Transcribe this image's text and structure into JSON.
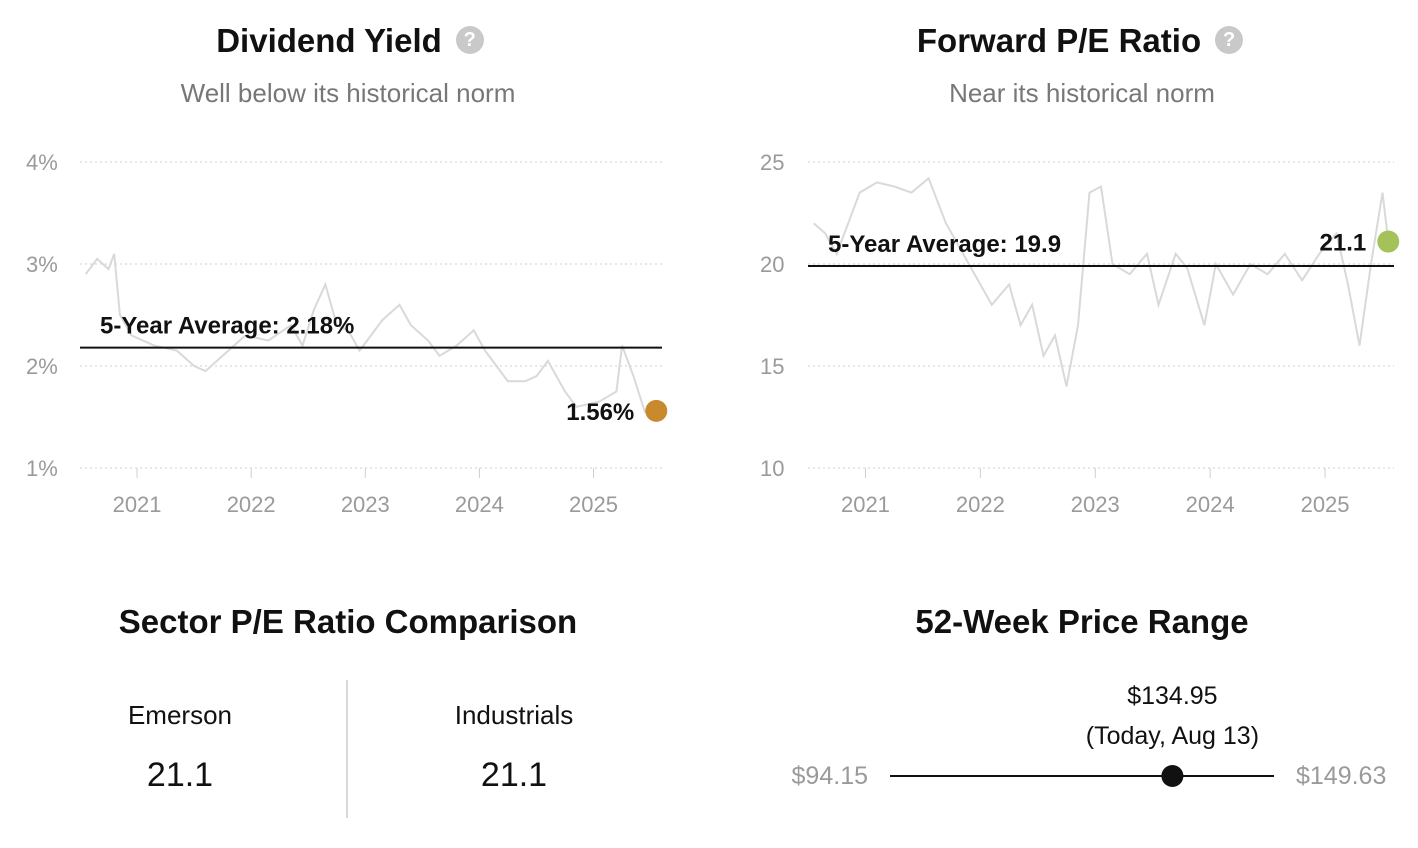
{
  "dividend": {
    "title": "Dividend Yield",
    "help_icon": "question-circle-icon",
    "subtitle": "Well below its historical norm",
    "avg_label": "5-Year Average: 2.18%",
    "last_label": "1.56%",
    "dot_color": "#c98a2e"
  },
  "pe": {
    "title": "Forward P/E Ratio",
    "help_icon": "question-circle-icon",
    "subtitle": "Near its historical norm",
    "avg_label": "5-Year Average: 19.9",
    "last_label": "21.1",
    "dot_color": "#a5c25a"
  },
  "sector": {
    "title": "Sector P/E Ratio Comparison",
    "left_name": "Emerson",
    "left_value": "21.1",
    "right_name": "Industrials",
    "right_value": "21.1"
  },
  "range": {
    "title": "52-Week Price Range",
    "low": "$94.15",
    "high": "$149.63",
    "current": "$134.95",
    "current_note": "(Today, Aug 13)",
    "low_value": 94.15,
    "high_value": 149.63,
    "current_value": 134.95
  },
  "chart_data": [
    {
      "type": "line",
      "title": "Dividend Yield",
      "xlabel": "",
      "ylabel": "",
      "x_ticks": [
        "2021",
        "2022",
        "2023",
        "2024",
        "2025"
      ],
      "y_ticks": [
        "1%",
        "2%",
        "3%",
        "4%"
      ],
      "xlim": [
        2020.55,
        2025.65
      ],
      "ylim": [
        1,
        4
      ],
      "grid": true,
      "series_color": "#d9d9d9",
      "average": 2.18,
      "last_value": 1.56,
      "x": [
        2020.6,
        2020.7,
        2020.8,
        2020.85,
        2020.9,
        2021.0,
        2021.2,
        2021.4,
        2021.55,
        2021.65,
        2021.8,
        2022.0,
        2022.2,
        2022.4,
        2022.5,
        2022.6,
        2022.7,
        2022.8,
        2022.9,
        2023.0,
        2023.1,
        2023.2,
        2023.35,
        2023.45,
        2023.6,
        2023.7,
        2023.85,
        2024.0,
        2024.1,
        2024.2,
        2024.3,
        2024.45,
        2024.55,
        2024.65,
        2024.8,
        2024.9,
        2025.1,
        2025.25,
        2025.3,
        2025.4,
        2025.5,
        2025.6
      ],
      "y": [
        2.9,
        3.05,
        2.95,
        3.1,
        2.5,
        2.3,
        2.2,
        2.15,
        2.0,
        1.95,
        2.1,
        2.3,
        2.25,
        2.4,
        2.2,
        2.55,
        2.8,
        2.4,
        2.35,
        2.15,
        2.3,
        2.45,
        2.6,
        2.4,
        2.25,
        2.1,
        2.2,
        2.35,
        2.15,
        2.0,
        1.85,
        1.85,
        1.9,
        2.05,
        1.75,
        1.6,
        1.65,
        1.75,
        2.2,
        1.9,
        1.55,
        1.56
      ]
    },
    {
      "type": "line",
      "title": "Forward P/E Ratio",
      "xlabel": "",
      "ylabel": "",
      "x_ticks": [
        "2021",
        "2022",
        "2023",
        "2024",
        "2025"
      ],
      "y_ticks": [
        "10",
        "15",
        "20",
        "25"
      ],
      "xlim": [
        2020.55,
        2025.65
      ],
      "ylim": [
        10,
        25
      ],
      "grid": true,
      "series_color": "#d9d9d9",
      "average": 19.9,
      "last_value": 21.1,
      "x": [
        2020.6,
        2020.7,
        2020.8,
        2020.9,
        2021.0,
        2021.15,
        2021.3,
        2021.45,
        2021.6,
        2021.75,
        2021.85,
        2022.0,
        2022.15,
        2022.3,
        2022.4,
        2022.5,
        2022.6,
        2022.7,
        2022.8,
        2022.9,
        2023.0,
        2023.1,
        2023.2,
        2023.35,
        2023.5,
        2023.6,
        2023.75,
        2023.85,
        2024.0,
        2024.1,
        2024.25,
        2024.4,
        2024.55,
        2024.7,
        2024.85,
        2025.0,
        2025.15,
        2025.25,
        2025.35,
        2025.45,
        2025.55,
        2025.6
      ],
      "y": [
        22,
        21.5,
        20.5,
        22,
        23.5,
        24,
        23.8,
        23.5,
        24.2,
        22,
        21,
        19.5,
        18,
        19,
        17,
        18,
        15.5,
        16.5,
        14,
        17,
        23.5,
        23.8,
        20,
        19.5,
        20.5,
        18,
        20.5,
        19.8,
        17,
        20,
        18.5,
        20,
        19.5,
        20.5,
        19.2,
        20.5,
        21.5,
        19,
        16,
        20,
        23.5,
        21.1
      ]
    }
  ]
}
